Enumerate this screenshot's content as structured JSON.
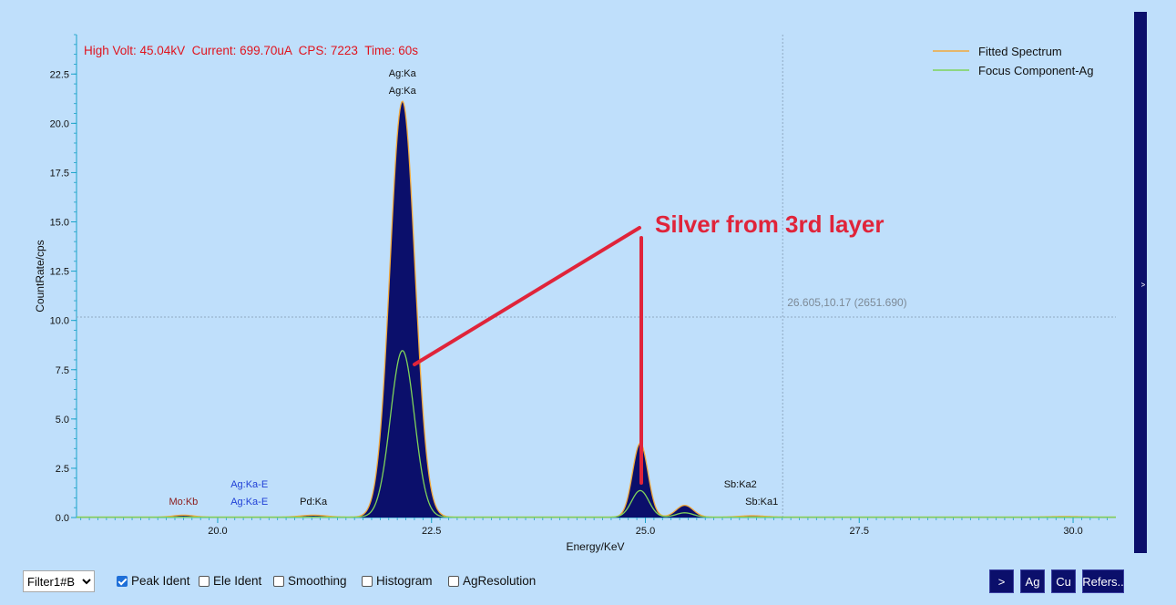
{
  "status_line": "High Volt: 45.04kV  Current: 699.70uA  CPS: 7223  Time: 60s",
  "annotation": "Silver from 3rd layer",
  "crosshair_readout": "26.605,10.17 (2651.690)",
  "crosshair": {
    "x": 26.605,
    "y": 10.17
  },
  "colors": {
    "fill": "#0b0f6b",
    "fitted": "#f2a93b",
    "focus": "#7fd35a",
    "annotation": "#e0243a",
    "status": "#e0141e",
    "axis": "#1aa3c9"
  },
  "chart_data": {
    "type": "area",
    "xlabel": "Energy/KeV",
    "ylabel": "CountRate/cps",
    "xlim": [
      18.35,
      30.5
    ],
    "ylim": [
      0,
      24.5
    ],
    "xticks": [
      "20.0",
      "22.5",
      "25.0",
      "27.5",
      "30.0"
    ],
    "yticks": [
      "0.0",
      "2.5",
      "5.0",
      "7.5",
      "10.0",
      "12.5",
      "15.0",
      "17.5",
      "20.0",
      "22.5"
    ],
    "grid": false,
    "legend_position": "top-right",
    "series": [
      {
        "name": "Fitted Spectrum",
        "color": "#f2a93b",
        "peaks": [
          {
            "center": 22.16,
            "height": 21.1,
            "width": 0.145
          },
          {
            "center": 24.94,
            "height": 3.75,
            "width": 0.09
          },
          {
            "center": 25.46,
            "height": 0.6,
            "width": 0.1
          },
          {
            "center": 21.12,
            "height": 0.1,
            "width": 0.15
          },
          {
            "center": 19.6,
            "height": 0.1,
            "width": 0.12
          },
          {
            "center": 26.25,
            "height": 0.07,
            "width": 0.15
          },
          {
            "center": 29.9,
            "height": 0.03,
            "width": 0.2
          }
        ]
      },
      {
        "name": "Focus Component-Ag",
        "color": "#7fd35a",
        "peaks": [
          {
            "center": 22.16,
            "height": 8.45,
            "width": 0.14
          },
          {
            "center": 24.94,
            "height": 1.35,
            "width": 0.1
          },
          {
            "center": 25.46,
            "height": 0.22,
            "width": 0.1
          }
        ]
      }
    ],
    "peak_labels": [
      {
        "text": "Ag:Ka",
        "x": 22.16,
        "row": 2,
        "color": "#111111"
      },
      {
        "text": "Ag:Ka",
        "x": 22.16,
        "row": 1,
        "color": "#111111"
      },
      {
        "text": "Mo:Kb",
        "x": 19.6,
        "row": 1,
        "color": "#8b1a1a"
      },
      {
        "text": "Ag:Ka-E",
        "x": 20.37,
        "row": 2,
        "color": "#1f3fd6"
      },
      {
        "text": "Ag:Ka-E",
        "x": 20.37,
        "row": 1,
        "color": "#1f3fd6"
      },
      {
        "text": "Pd:Ka",
        "x": 21.12,
        "row": 1,
        "color": "#111111"
      },
      {
        "text": "Sb:Ka2",
        "x": 26.11,
        "row": 2,
        "color": "#111111"
      },
      {
        "text": "Sb:Ka1",
        "x": 26.36,
        "row": 1,
        "color": "#111111"
      }
    ]
  },
  "controls": {
    "filter_value": "Filter1#B",
    "checkboxes": [
      {
        "label": "Peak Ident",
        "checked": true
      },
      {
        "label": "Ele Ident",
        "checked": false
      },
      {
        "label": "Smoothing",
        "checked": false
      },
      {
        "label": "Histogram",
        "checked": false
      },
      {
        "label": "AgResolution",
        "checked": false
      }
    ],
    "buttons": [
      ">",
      "Ag",
      "Cu",
      "Refers.."
    ],
    "scroll_arrow": "^"
  }
}
